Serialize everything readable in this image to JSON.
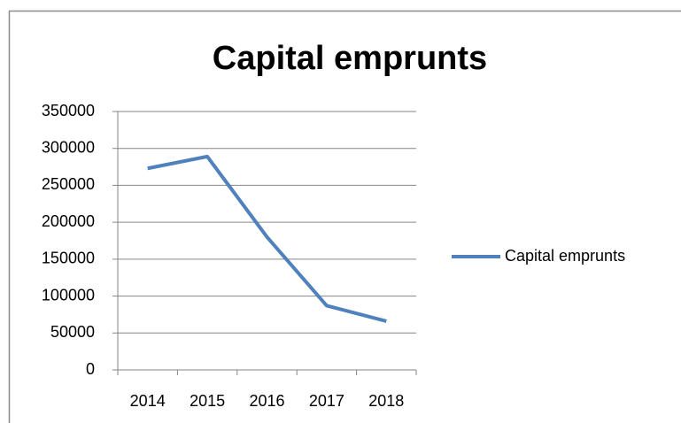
{
  "chart_data": {
    "type": "line",
    "title": "Capital emprunts",
    "categories": [
      "2014",
      "2015",
      "2016",
      "2017",
      "2018"
    ],
    "series": [
      {
        "name": "Capital emprunts",
        "color": "#4f81bd",
        "values": [
          273000,
          289000,
          180000,
          87000,
          66000
        ]
      }
    ],
    "ylim": [
      0,
      350000
    ],
    "yticks": [
      0,
      50000,
      100000,
      150000,
      200000,
      250000,
      300000,
      350000
    ],
    "grid": true,
    "legend": "right"
  }
}
